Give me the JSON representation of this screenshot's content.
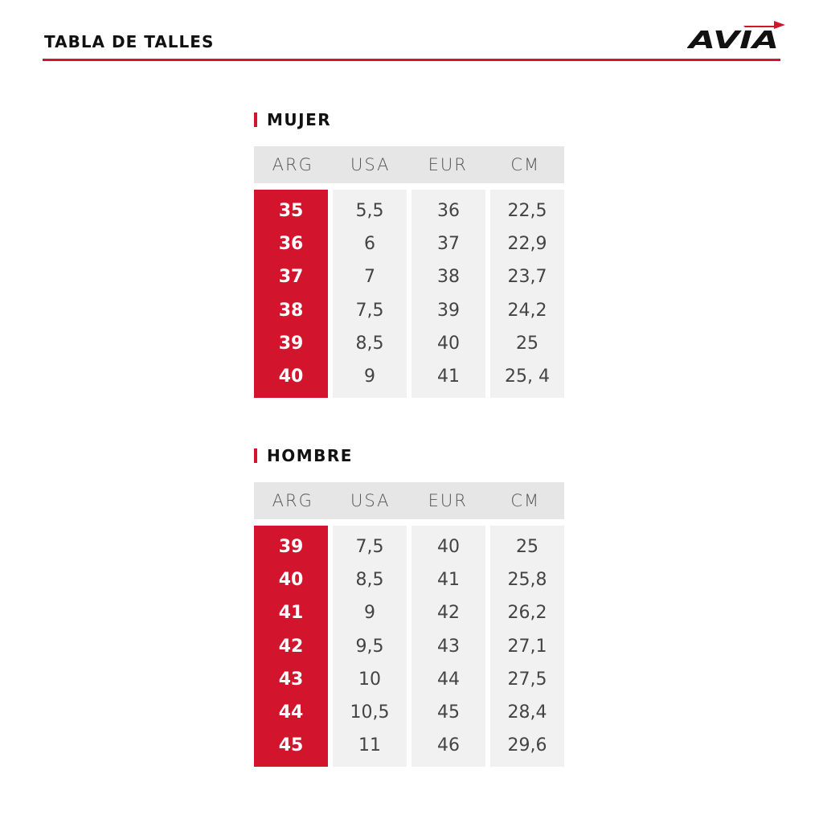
{
  "header": {
    "title": "TABLA DE TALLES",
    "logo_text": "AVIA"
  },
  "colors": {
    "accent": "#d2152d",
    "header_bg": "#e6e6e6",
    "cell_bg": "#f1f1f1"
  },
  "columns": [
    "ARG",
    "USA",
    "EUR",
    "CM"
  ],
  "mujer": {
    "title": "MUJER",
    "rows": [
      [
        "35",
        "5,5",
        "36",
        "22,5"
      ],
      [
        "36",
        "6",
        "37",
        "22,9"
      ],
      [
        "37",
        "7",
        "38",
        "23,7"
      ],
      [
        "38",
        "7,5",
        "39",
        "24,2"
      ],
      [
        "39",
        "8,5",
        "40",
        "25"
      ],
      [
        "40",
        "9",
        "41",
        "25, 4"
      ]
    ]
  },
  "hombre": {
    "title": "HOMBRE",
    "rows": [
      [
        "39",
        "7,5",
        "40",
        "25"
      ],
      [
        "40",
        "8,5",
        "41",
        "25,8"
      ],
      [
        "41",
        "9",
        "42",
        "26,2"
      ],
      [
        "42",
        "9,5",
        "43",
        "27,1"
      ],
      [
        "43",
        "10",
        "44",
        "27,5"
      ],
      [
        "44",
        "10,5",
        "45",
        "28,4"
      ],
      [
        "45",
        "11",
        "46",
        "29,6"
      ]
    ]
  }
}
